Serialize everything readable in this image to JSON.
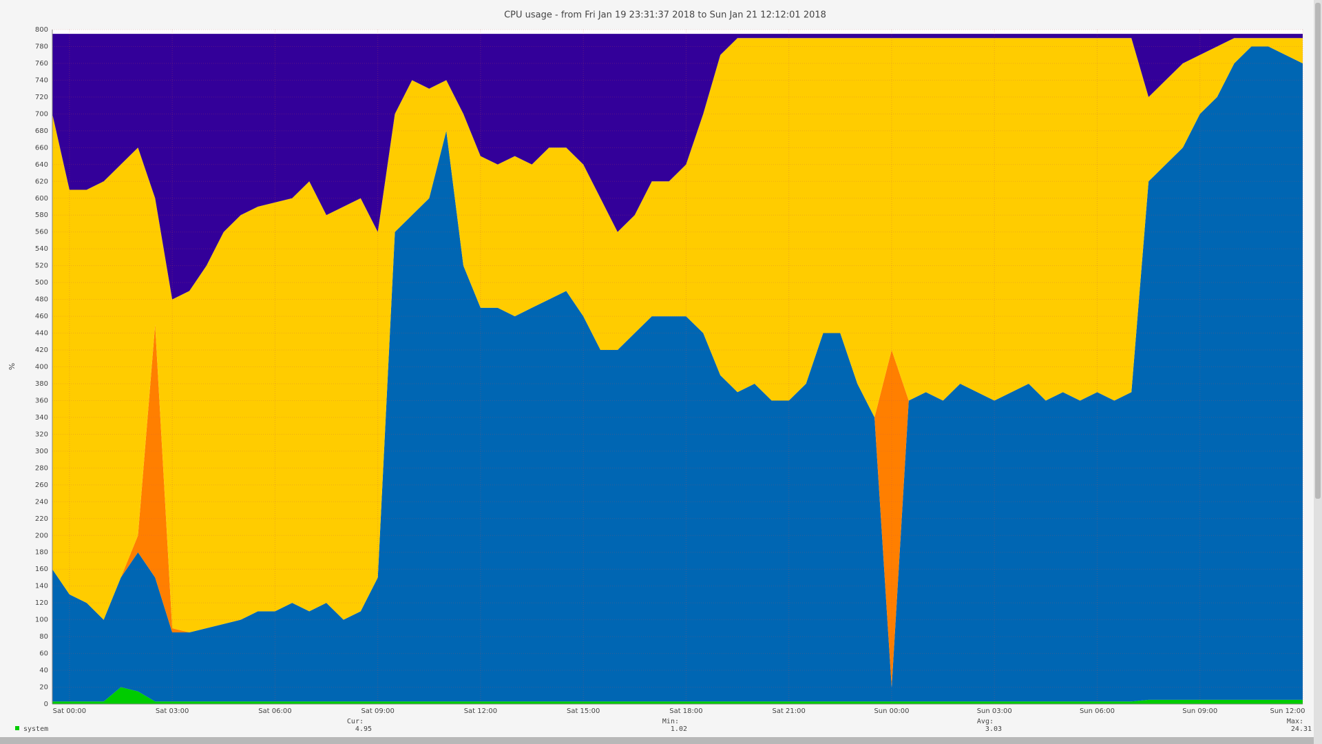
{
  "chart_data": {
    "type": "stacked-area",
    "title": "CPU usage - from Fri Jan 19 23:31:37 2018 to Sun Jan 21 12:12:01 2018",
    "y_label": "%",
    "x": [
      "Fri 23:30",
      "Sat 00:00",
      "Sat 00:30",
      "Sat 01:00",
      "Sat 01:30",
      "Sat 02:00",
      "Sat 02:30",
      "Sat 03:00",
      "Sat 03:30",
      "Sat 04:00",
      "Sat 04:30",
      "Sat 05:00",
      "Sat 05:30",
      "Sat 06:00",
      "Sat 06:30",
      "Sat 07:00",
      "Sat 07:30",
      "Sat 08:00",
      "Sat 08:30",
      "Sat 09:00",
      "Sat 09:30",
      "Sat 10:00",
      "Sat 10:30",
      "Sat 11:00",
      "Sat 11:30",
      "Sat 12:00",
      "Sat 12:30",
      "Sat 13:00",
      "Sat 13:30",
      "Sat 14:00",
      "Sat 14:30",
      "Sat 15:00",
      "Sat 15:30",
      "Sat 16:00",
      "Sat 16:30",
      "Sat 17:00",
      "Sat 17:30",
      "Sat 18:00",
      "Sat 18:30",
      "Sat 19:00",
      "Sat 19:30",
      "Sat 20:00",
      "Sat 20:30",
      "Sat 21:00",
      "Sat 21:30",
      "Sat 22:00",
      "Sat 22:30",
      "Sat 23:00",
      "Sat 23:30",
      "Sun 00:00",
      "Sun 00:30",
      "Sun 01:00",
      "Sun 01:30",
      "Sun 02:00",
      "Sun 02:30",
      "Sun 03:00",
      "Sun 03:30",
      "Sun 04:00",
      "Sun 04:30",
      "Sun 05:00",
      "Sun 05:30",
      "Sun 06:00",
      "Sun 06:30",
      "Sun 07:00",
      "Sun 07:30",
      "Sun 08:00",
      "Sun 08:30",
      "Sun 09:00",
      "Sun 09:30",
      "Sun 10:00",
      "Sun 10:30",
      "Sun 11:00",
      "Sun 11:30",
      "Sun 12:00"
    ],
    "xticks": [
      "Sat 00:00",
      "Sat 03:00",
      "Sat 06:00",
      "Sat 09:00",
      "Sat 12:00",
      "Sat 15:00",
      "Sat 18:00",
      "Sat 21:00",
      "Sun 00:00",
      "Sun 03:00",
      "Sun 06:00",
      "Sun 09:00",
      "Sun 12:00"
    ],
    "ylim": [
      0,
      800
    ],
    "yticks": [
      0,
      20,
      40,
      60,
      80,
      100,
      120,
      140,
      160,
      180,
      200,
      220,
      240,
      260,
      280,
      300,
      320,
      340,
      360,
      380,
      400,
      420,
      440,
      460,
      480,
      500,
      520,
      540,
      560,
      580,
      600,
      620,
      640,
      660,
      680,
      700,
      720,
      740,
      760,
      780,
      800
    ],
    "grid": true,
    "series": [
      {
        "name": "system",
        "color": "#00cc00",
        "values": [
          3,
          3,
          3,
          3,
          20,
          15,
          3,
          3,
          3,
          3,
          3,
          3,
          3,
          3,
          3,
          3,
          3,
          3,
          3,
          3,
          3,
          3,
          3,
          3,
          3,
          3,
          3,
          3,
          3,
          3,
          3,
          3,
          3,
          3,
          3,
          3,
          3,
          3,
          3,
          3,
          3,
          3,
          3,
          3,
          3,
          3,
          3,
          3,
          3,
          3,
          3,
          3,
          3,
          3,
          3,
          3,
          3,
          3,
          3,
          3,
          3,
          3,
          3,
          3,
          5,
          5,
          5,
          5,
          5,
          5,
          5,
          5,
          5,
          5
        ]
      },
      {
        "color": "#0066b3",
        "values": [
          157,
          127,
          117,
          97,
          130,
          165,
          147,
          82,
          82,
          87,
          92,
          97,
          107,
          107,
          117,
          107,
          117,
          97,
          107,
          147,
          557,
          577,
          597,
          677,
          517,
          467,
          467,
          457,
          467,
          477,
          487,
          457,
          417,
          417,
          437,
          457,
          457,
          457,
          437,
          387,
          367,
          377,
          357,
          357,
          377,
          437,
          437,
          377,
          337,
          17,
          357,
          367,
          357,
          377,
          367,
          357,
          367,
          377,
          357,
          367,
          357,
          367,
          357,
          367,
          615,
          635,
          655,
          695,
          715,
          755,
          775,
          775,
          765,
          755
        ]
      },
      {
        "color": "#ff7f00",
        "values": [
          0,
          0,
          0,
          0,
          0,
          20,
          300,
          5,
          0,
          0,
          0,
          0,
          0,
          0,
          0,
          0,
          0,
          0,
          0,
          0,
          0,
          0,
          0,
          0,
          0,
          0,
          0,
          0,
          0,
          0,
          0,
          0,
          0,
          0,
          0,
          0,
          0,
          0,
          0,
          0,
          0,
          0,
          0,
          0,
          0,
          0,
          0,
          0,
          0,
          400,
          0,
          0,
          0,
          0,
          0,
          0,
          0,
          0,
          0,
          0,
          0,
          0,
          0,
          0,
          0,
          0,
          0,
          0,
          0,
          0,
          0,
          0,
          0,
          0
        ]
      },
      {
        "color": "#ffcc00",
        "values": [
          540,
          480,
          490,
          520,
          490,
          460,
          150,
          390,
          405,
          430,
          465,
          480,
          480,
          485,
          480,
          510,
          460,
          490,
          490,
          410,
          140,
          160,
          130,
          60,
          180,
          180,
          170,
          190,
          170,
          180,
          170,
          180,
          180,
          140,
          140,
          160,
          160,
          180,
          260,
          380,
          420,
          410,
          430,
          430,
          410,
          350,
          350,
          410,
          450,
          370,
          430,
          420,
          430,
          410,
          420,
          430,
          420,
          410,
          430,
          420,
          430,
          420,
          430,
          420,
          100,
          100,
          100,
          70,
          60,
          30,
          10,
          10,
          20,
          30
        ]
      },
      {
        "color": "#330099",
        "values": [
          95,
          185,
          185,
          175,
          155,
          135,
          195,
          315,
          305,
          275,
          235,
          215,
          205,
          200,
          195,
          175,
          215,
          205,
          195,
          235,
          95,
          55,
          65,
          55,
          95,
          145,
          155,
          145,
          155,
          135,
          135,
          155,
          195,
          235,
          215,
          175,
          175,
          155,
          95,
          25,
          5,
          5,
          5,
          5,
          5,
          5,
          5,
          5,
          5,
          5,
          5,
          5,
          5,
          5,
          5,
          5,
          5,
          5,
          5,
          5,
          5,
          5,
          5,
          5,
          75,
          55,
          35,
          25,
          15,
          5,
          5,
          5,
          5,
          5
        ]
      }
    ],
    "stats": [
      {
        "label": "Cur:",
        "value": 4.95
      },
      {
        "label": "Min:",
        "value": 1.02
      },
      {
        "label": "Avg:",
        "value": 3.03
      },
      {
        "label": "Max:",
        "value": 24.31
      }
    ]
  }
}
